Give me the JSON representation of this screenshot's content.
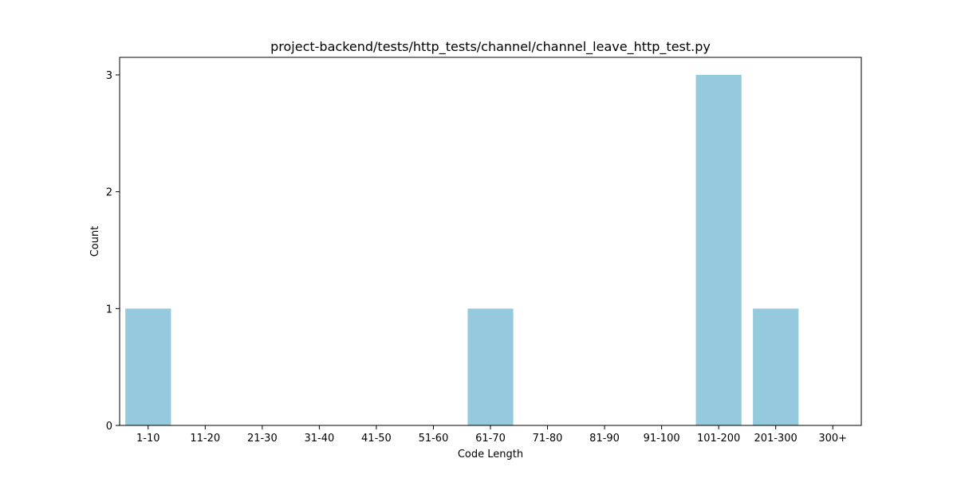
{
  "chart_data": {
    "type": "bar",
    "title": "project-backend/tests/http_tests/channel/channel_leave_http_test.py",
    "xlabel": "Code Length",
    "ylabel": "Count",
    "categories": [
      "1-10",
      "11-20",
      "21-30",
      "31-40",
      "41-50",
      "51-60",
      "61-70",
      "71-80",
      "81-90",
      "91-100",
      "101-200",
      "201-300",
      "300+"
    ],
    "values": [
      1,
      0,
      0,
      0,
      0,
      0,
      1,
      0,
      0,
      0,
      3,
      1,
      0
    ],
    "ylim": [
      0,
      3.15
    ],
    "yticks": [
      0,
      1,
      2,
      3
    ],
    "grid": false,
    "colors": {
      "bar": "#95c9de",
      "axis": "#000000"
    }
  }
}
